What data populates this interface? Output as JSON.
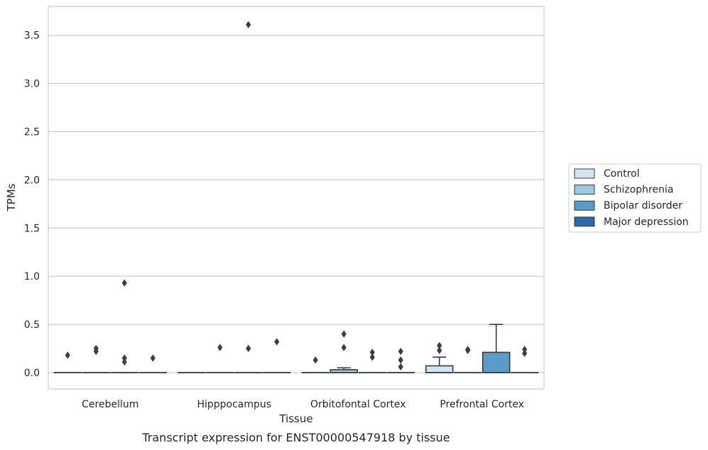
{
  "chart_data": {
    "type": "box",
    "xlabel": "Tissue",
    "ylabel": "TPMs",
    "caption": "Transcript expression for ENST00000547918 by tissue",
    "ylim": [
      -0.17,
      3.8
    ],
    "yticks": [
      0.0,
      0.5,
      1.0,
      1.5,
      2.0,
      2.5,
      3.0,
      3.5
    ],
    "ytick_labels": [
      "0.0",
      "0.5",
      "1.0",
      "1.5",
      "2.0",
      "2.5",
      "3.0",
      "3.5"
    ],
    "grid": "horizontal",
    "legend_placement": "right",
    "categories": [
      "Cerebellum",
      "Hipppocampus",
      "Orbitofontal Cortex",
      "Prefrontal Cortex"
    ],
    "series": [
      {
        "name": "Control",
        "color": "#d3e4f3",
        "boxes": [
          {
            "q1": 0,
            "median": 0,
            "q3": 0,
            "whisker_low": 0,
            "whisker_high": 0,
            "outliers": [
              0.18
            ]
          },
          {
            "q1": 0,
            "median": 0,
            "q3": 0,
            "whisker_low": 0,
            "whisker_high": 0,
            "outliers": []
          },
          {
            "q1": 0,
            "median": 0,
            "q3": 0,
            "whisker_low": 0,
            "whisker_high": 0,
            "outliers": [
              0.13
            ]
          },
          {
            "q1": 0,
            "median": 0,
            "q3": 0.07,
            "whisker_low": 0,
            "whisker_high": 0.16,
            "outliers": [
              0.23,
              0.28
            ]
          }
        ]
      },
      {
        "name": "Schizophrenia",
        "color": "#9ecae1",
        "boxes": [
          {
            "q1": 0,
            "median": 0,
            "q3": 0,
            "whisker_low": 0,
            "whisker_high": 0,
            "outliers": [
              0.22,
              0.25
            ]
          },
          {
            "q1": 0,
            "median": 0,
            "q3": 0,
            "whisker_low": 0,
            "whisker_high": 0,
            "outliers": [
              0.26
            ]
          },
          {
            "q1": 0,
            "median": 0,
            "q3": 0.03,
            "whisker_low": 0,
            "whisker_high": 0.05,
            "outliers": [
              0.26,
              0.4
            ]
          },
          {
            "q1": 0,
            "median": 0,
            "q3": 0,
            "whisker_low": 0,
            "whisker_high": 0,
            "outliers": [
              0.23,
              0.24
            ]
          }
        ]
      },
      {
        "name": "Bipolar disorder",
        "color": "#5a9cc8",
        "boxes": [
          {
            "q1": 0,
            "median": 0,
            "q3": 0,
            "whisker_low": 0,
            "whisker_high": 0,
            "outliers": [
              0.11,
              0.15,
              0.93
            ]
          },
          {
            "q1": 0,
            "median": 0,
            "q3": 0,
            "whisker_low": 0,
            "whisker_high": 0,
            "outliers": [
              0.25,
              3.61
            ]
          },
          {
            "q1": 0,
            "median": 0,
            "q3": 0,
            "whisker_low": 0,
            "whisker_high": 0,
            "outliers": [
              0.16,
              0.21
            ]
          },
          {
            "q1": 0,
            "median": 0,
            "q3": 0.21,
            "whisker_low": 0,
            "whisker_high": 0.5,
            "outliers": []
          }
        ]
      },
      {
        "name": "Major depression",
        "color": "#2b6aa7",
        "boxes": [
          {
            "q1": 0,
            "median": 0,
            "q3": 0,
            "whisker_low": 0,
            "whisker_high": 0,
            "outliers": [
              0.15
            ]
          },
          {
            "q1": 0,
            "median": 0,
            "q3": 0,
            "whisker_low": 0,
            "whisker_high": 0,
            "outliers": [
              0.32
            ]
          },
          {
            "q1": 0,
            "median": 0,
            "q3": 0,
            "whisker_low": 0,
            "whisker_high": 0,
            "outliers": [
              0.06,
              0.13,
              0.22
            ]
          },
          {
            "q1": 0,
            "median": 0,
            "q3": 0,
            "whisker_low": 0,
            "whisker_high": 0,
            "outliers": [
              0.2,
              0.24
            ]
          }
        ]
      }
    ]
  }
}
